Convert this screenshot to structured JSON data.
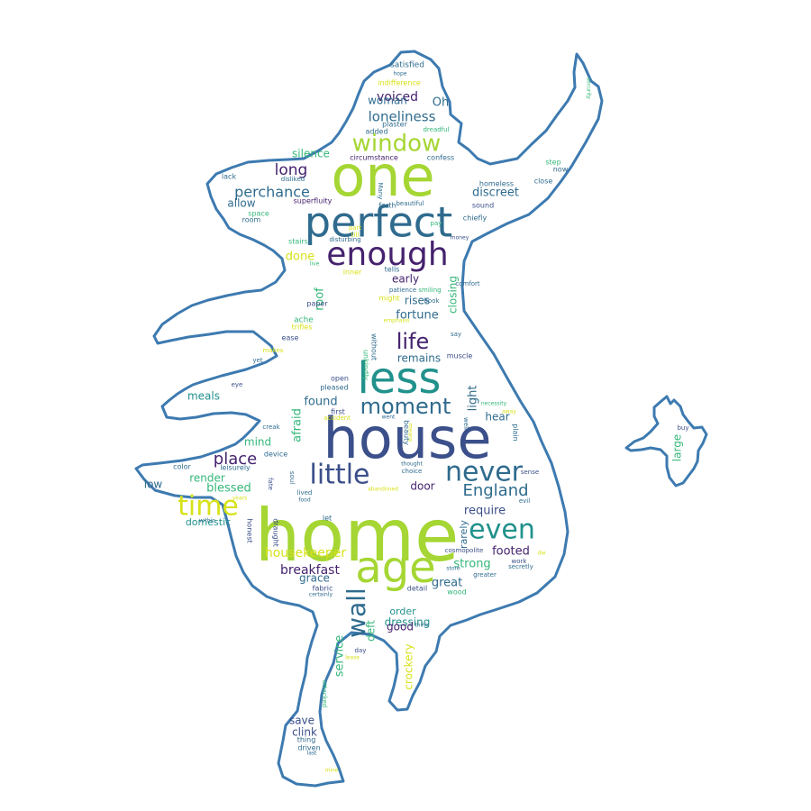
{
  "outline_color": "#3d7ab0",
  "palette": {
    "purple": "#45226e",
    "indigo": "#3b4f8a",
    "blue": "#2f6b8e",
    "teal": "#21918c",
    "green": "#35b779",
    "lime": "#a5d633",
    "yellow": "#d7e219"
  },
  "words": [
    {
      "t": "home",
      "c": "lime"
    },
    {
      "t": "house",
      "c": "indigo"
    },
    {
      "t": "perfect",
      "c": "blue"
    },
    {
      "t": "one",
      "c": "lime"
    },
    {
      "t": "less",
      "c": "teal"
    },
    {
      "t": "age",
      "c": "lime"
    },
    {
      "t": "enough",
      "c": "purple"
    },
    {
      "t": "little",
      "c": "indigo"
    },
    {
      "t": "never",
      "c": "blue"
    },
    {
      "t": "even",
      "c": "teal"
    },
    {
      "t": "time",
      "c": "yellow"
    },
    {
      "t": "moment",
      "c": "blue"
    },
    {
      "t": "window",
      "c": "lime"
    },
    {
      "t": "life",
      "c": "purple"
    },
    {
      "t": "wall",
      "c": "blue"
    },
    {
      "t": "England",
      "c": "blue"
    },
    {
      "t": "place",
      "c": "purple"
    },
    {
      "t": "perchance",
      "c": "blue"
    },
    {
      "t": "long",
      "c": "purple"
    },
    {
      "t": "loneliness",
      "c": "blue"
    },
    {
      "t": "breakfast",
      "c": "purple"
    },
    {
      "t": "housekeeper",
      "c": "yellow"
    },
    {
      "t": "footed",
      "c": "purple"
    },
    {
      "t": "strong",
      "c": "green"
    },
    {
      "t": "great",
      "c": "blue"
    },
    {
      "t": "fortune",
      "c": "blue"
    },
    {
      "t": "discreet",
      "c": "blue"
    },
    {
      "t": "found",
      "c": "blue"
    },
    {
      "t": "remains",
      "c": "blue"
    },
    {
      "t": "light",
      "c": "blue"
    },
    {
      "t": "require",
      "c": "indigo"
    },
    {
      "t": "dressing",
      "c": "teal"
    },
    {
      "t": "crockery",
      "c": "yellow"
    },
    {
      "t": "service",
      "c": "green"
    },
    {
      "t": "good",
      "c": "purple"
    },
    {
      "t": "blessed",
      "c": "green"
    },
    {
      "t": "voiced",
      "c": "purple"
    },
    {
      "t": "woman",
      "c": "blue"
    },
    {
      "t": "silence",
      "c": "green"
    },
    {
      "t": "closing",
      "c": "green"
    },
    {
      "t": "rises",
      "c": "blue"
    },
    {
      "t": "early",
      "c": "purple"
    },
    {
      "t": "done",
      "c": "yellow"
    },
    {
      "t": "allow",
      "c": "blue"
    },
    {
      "t": "mind",
      "c": "green"
    },
    {
      "t": "render",
      "c": "green"
    },
    {
      "t": "meals",
      "c": "teal"
    },
    {
      "t": "low",
      "c": "blue"
    },
    {
      "t": "hear",
      "c": "blue"
    },
    {
      "t": "door",
      "c": "purple"
    },
    {
      "t": "grace",
      "c": "blue"
    },
    {
      "t": "save",
      "c": "indigo"
    },
    {
      "t": "clink",
      "c": "indigo"
    },
    {
      "t": "order",
      "c": "teal"
    },
    {
      "t": "rarely",
      "c": "blue"
    },
    {
      "t": "afraid",
      "c": "green"
    },
    {
      "t": "roof",
      "c": "green"
    },
    {
      "t": "Oh",
      "c": "blue"
    },
    {
      "t": "deft",
      "c": "green"
    },
    {
      "t": "large",
      "c": "green"
    },
    {
      "t": "domestic",
      "c": "teal"
    },
    {
      "t": "satisfied",
      "c": "blue"
    },
    {
      "t": "indifference",
      "c": "yellow"
    },
    {
      "t": "plaster",
      "c": "blue"
    },
    {
      "t": "dreadful",
      "c": "green"
    },
    {
      "t": "added",
      "c": "blue"
    },
    {
      "t": "circumstance",
      "c": "purple"
    },
    {
      "t": "confess",
      "c": "blue"
    },
    {
      "t": "step",
      "c": "green"
    },
    {
      "t": "now",
      "c": "blue"
    },
    {
      "t": "close",
      "c": "blue"
    },
    {
      "t": "lack",
      "c": "blue"
    },
    {
      "t": "disliked",
      "c": "blue"
    },
    {
      "t": "homeless",
      "c": "blue"
    },
    {
      "t": "sound",
      "c": "indigo"
    },
    {
      "t": "chiefly",
      "c": "blue"
    },
    {
      "t": "superfluity",
      "c": "purple"
    },
    {
      "t": "Many",
      "c": "blue"
    },
    {
      "t": "beautiful",
      "c": "blue"
    },
    {
      "t": "space",
      "c": "green"
    },
    {
      "t": "forth",
      "c": "blue"
    },
    {
      "t": "room",
      "c": "blue"
    },
    {
      "t": "part",
      "c": "yellow"
    },
    {
      "t": "till",
      "c": "yellow"
    },
    {
      "t": "pay",
      "c": "green"
    },
    {
      "t": "stairs",
      "c": "green"
    },
    {
      "t": "disturbing",
      "c": "blue"
    },
    {
      "t": "live",
      "c": "green"
    },
    {
      "t": "tells",
      "c": "blue"
    },
    {
      "t": "book",
      "c": "blue"
    },
    {
      "t": "comfort",
      "c": "blue"
    },
    {
      "t": "inner",
      "c": "yellow"
    },
    {
      "t": "patience",
      "c": "blue"
    },
    {
      "t": "smiling",
      "c": "green"
    },
    {
      "t": "might",
      "c": "yellow"
    },
    {
      "t": "paper",
      "c": "indigo"
    },
    {
      "t": "ache",
      "c": "green"
    },
    {
      "t": "trifles",
      "c": "yellow"
    },
    {
      "t": "emphasis",
      "c": "yellow"
    },
    {
      "t": "without",
      "c": "blue"
    },
    {
      "t": "unkindly",
      "c": "green"
    },
    {
      "t": "say",
      "c": "blue"
    },
    {
      "t": "ease",
      "c": "indigo"
    },
    {
      "t": "makes",
      "c": "yellow"
    },
    {
      "t": "yet",
      "c": "blue"
    },
    {
      "t": "muscle",
      "c": "indigo"
    },
    {
      "t": "open",
      "c": "indigo"
    },
    {
      "t": "eye",
      "c": "indigo"
    },
    {
      "t": "pleased",
      "c": "blue"
    },
    {
      "t": "necessity",
      "c": "green"
    },
    {
      "t": "away",
      "c": "yellow"
    },
    {
      "t": "first",
      "c": "indigo"
    },
    {
      "t": "accident",
      "c": "yellow"
    },
    {
      "t": "went",
      "c": "blue"
    },
    {
      "t": "means",
      "c": "yellow"
    },
    {
      "t": "well",
      "c": "blue"
    },
    {
      "t": "plain",
      "c": "blue"
    },
    {
      "t": "beauty",
      "c": "blue"
    },
    {
      "t": "creak",
      "c": "blue"
    },
    {
      "t": "device",
      "c": "blue"
    },
    {
      "t": "color",
      "c": "blue"
    },
    {
      "t": "leisurely",
      "c": "blue"
    },
    {
      "t": "thought",
      "c": "blue"
    },
    {
      "t": "choice",
      "c": "blue"
    },
    {
      "t": "sense",
      "c": "indigo"
    },
    {
      "t": "abandoned",
      "c": "yellow"
    },
    {
      "t": "fate",
      "c": "indigo"
    },
    {
      "t": "soul",
      "c": "blue"
    },
    {
      "t": "lived",
      "c": "blue"
    },
    {
      "t": "food",
      "c": "blue"
    },
    {
      "t": "evil",
      "c": "blue"
    },
    {
      "t": "let",
      "c": "blue"
    },
    {
      "t": "within",
      "c": "blue"
    },
    {
      "t": "honest",
      "c": "indigo"
    },
    {
      "t": "draught",
      "c": "indigo"
    },
    {
      "t": "cosmopolite",
      "c": "indigo"
    },
    {
      "t": "work",
      "c": "indigo"
    },
    {
      "t": "secretly",
      "c": "blue"
    },
    {
      "t": "store",
      "c": "blue"
    },
    {
      "t": "greater",
      "c": "blue"
    },
    {
      "t": "fabric",
      "c": "indigo"
    },
    {
      "t": "certainly",
      "c": "blue"
    },
    {
      "t": "detail",
      "c": "indigo"
    },
    {
      "t": "wood",
      "c": "green"
    },
    {
      "t": "think",
      "c": "blue"
    },
    {
      "t": "day",
      "c": "indigo"
    },
    {
      "t": "lease",
      "c": "yellow"
    },
    {
      "t": "attacked",
      "c": "green"
    },
    {
      "t": "thing",
      "c": "blue"
    },
    {
      "t": "driven",
      "c": "blue"
    },
    {
      "t": "last",
      "c": "blue"
    },
    {
      "t": "mine",
      "c": "yellow"
    },
    {
      "t": "hope",
      "c": "blue"
    },
    {
      "t": "security",
      "c": "green"
    },
    {
      "t": "buy",
      "c": "indigo"
    },
    {
      "t": "years",
      "c": "yellow"
    },
    {
      "t": "money",
      "c": "indigo"
    },
    {
      "t": "die",
      "c": "yellow"
    }
  ]
}
